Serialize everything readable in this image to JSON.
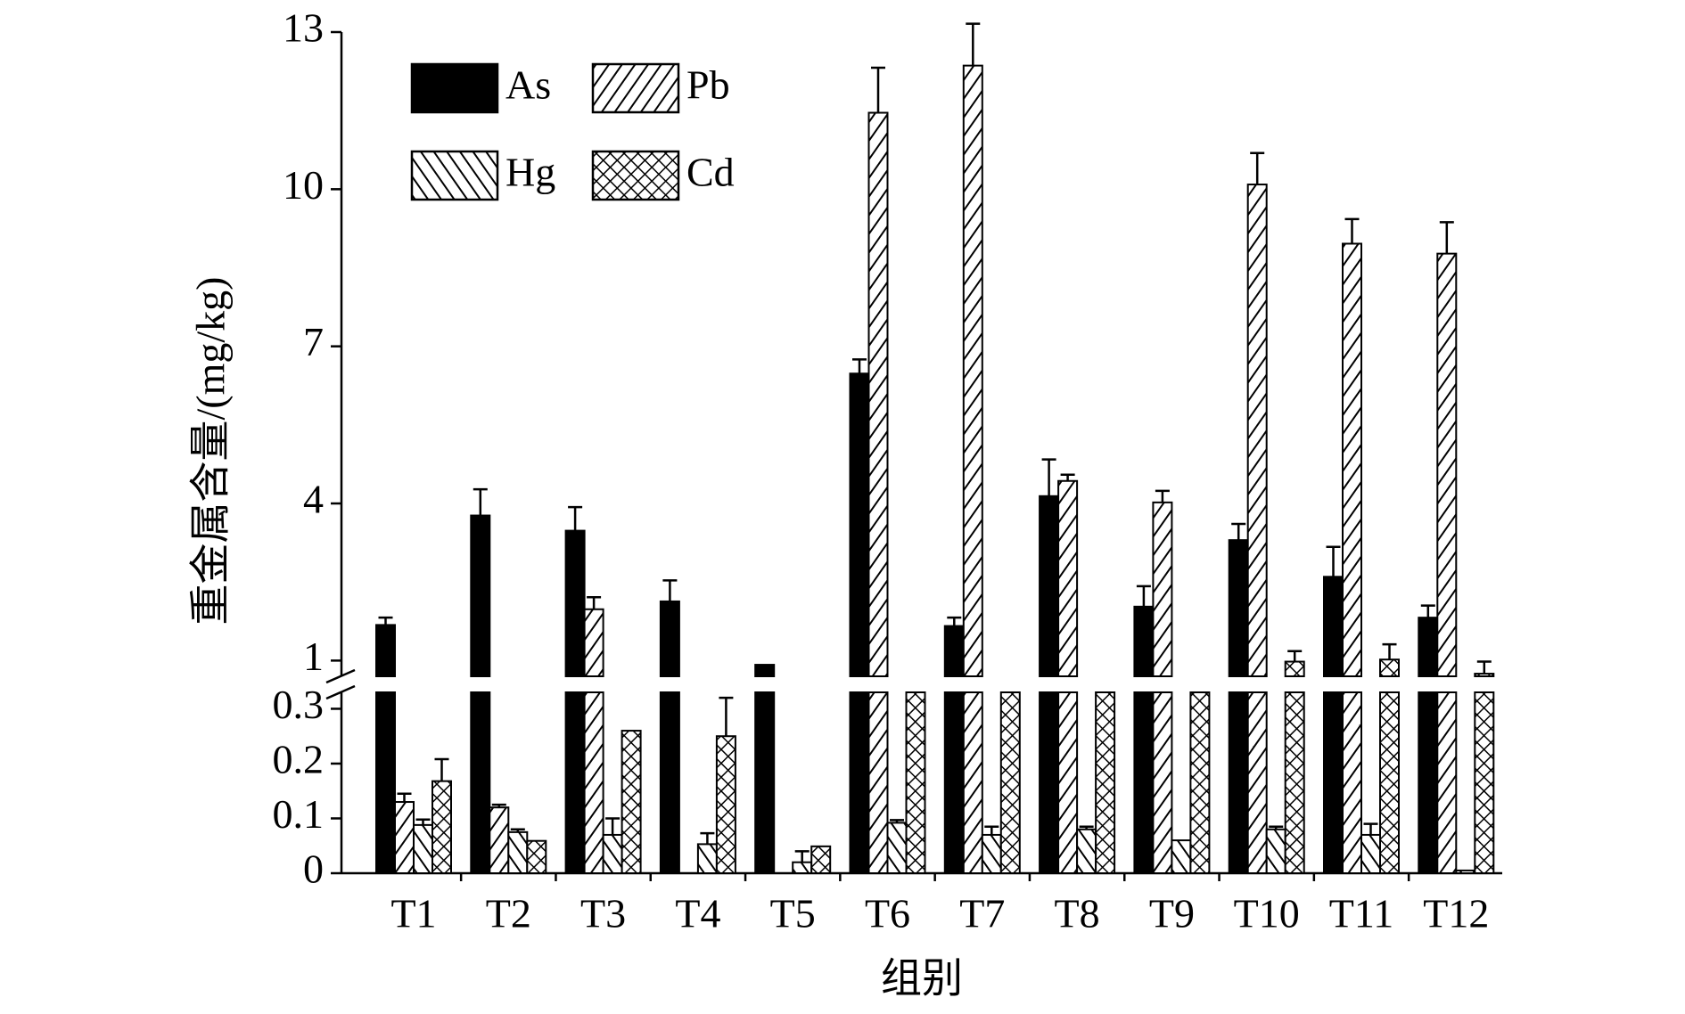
{
  "chart_data": {
    "type": "bar",
    "ylabel": "重金属含量/(mg/kg)",
    "xlabel": "组别",
    "categories": [
      "T1",
      "T2",
      "T3",
      "T4",
      "T5",
      "T6",
      "T7",
      "T8",
      "T9",
      "T10",
      "T11",
      "T12"
    ],
    "series": [
      {
        "name": "As",
        "color": "#000000",
        "pattern": "solid",
        "values": [
          1.68,
          3.77,
          3.48,
          2.13,
          0.92,
          6.48,
          1.66,
          4.14,
          2.03,
          3.3,
          2.6,
          1.82
        ],
        "errors": [
          0.14,
          0.5,
          0.45,
          0.4,
          null,
          0.27,
          0.16,
          0.7,
          0.39,
          0.31,
          0.57,
          0.23
        ]
      },
      {
        "name": "Pb",
        "color": "#000000",
        "pattern": "forward",
        "values": [
          0.13,
          0.12,
          1.98,
          null,
          null,
          11.46,
          12.36,
          4.43,
          4.02,
          10.09,
          8.96,
          8.77
        ],
        "errors": [
          0.015,
          0.005,
          0.23,
          null,
          null,
          0.86,
          0.8,
          0.12,
          0.22,
          0.6,
          0.47,
          0.6
        ]
      },
      {
        "name": "Hg",
        "color": "#000000",
        "pattern": "backward",
        "values": [
          0.088,
          0.075,
          0.07,
          0.053,
          0.02,
          0.092,
          0.07,
          0.08,
          0.06,
          0.08,
          0.07,
          0.005
        ],
        "errors": [
          0.01,
          0.005,
          0.03,
          0.02,
          0.02,
          0.005,
          0.015,
          0.005,
          null,
          0.005,
          0.02,
          null
        ]
      },
      {
        "name": "Cd",
        "color": "#000000",
        "pattern": "cross",
        "values": [
          0.168,
          0.059,
          0.26,
          0.25,
          0.049,
          0.5,
          0.5,
          0.5,
          0.5,
          0.98,
          1.02,
          0.75
        ],
        "errors": [
          0.04,
          null,
          null,
          0.07,
          null,
          null,
          null,
          null,
          null,
          0.2,
          0.29,
          0.23
        ]
      }
    ],
    "ylim_lower": [
      0,
      0.33
    ],
    "yticks_lower": [
      0,
      0.1,
      0.2,
      0.3
    ],
    "ylim_upper": [
      0.7,
      13
    ],
    "yticks_upper": [
      1,
      4,
      7,
      10,
      13
    ],
    "legend": "upper left",
    "grid": false
  }
}
